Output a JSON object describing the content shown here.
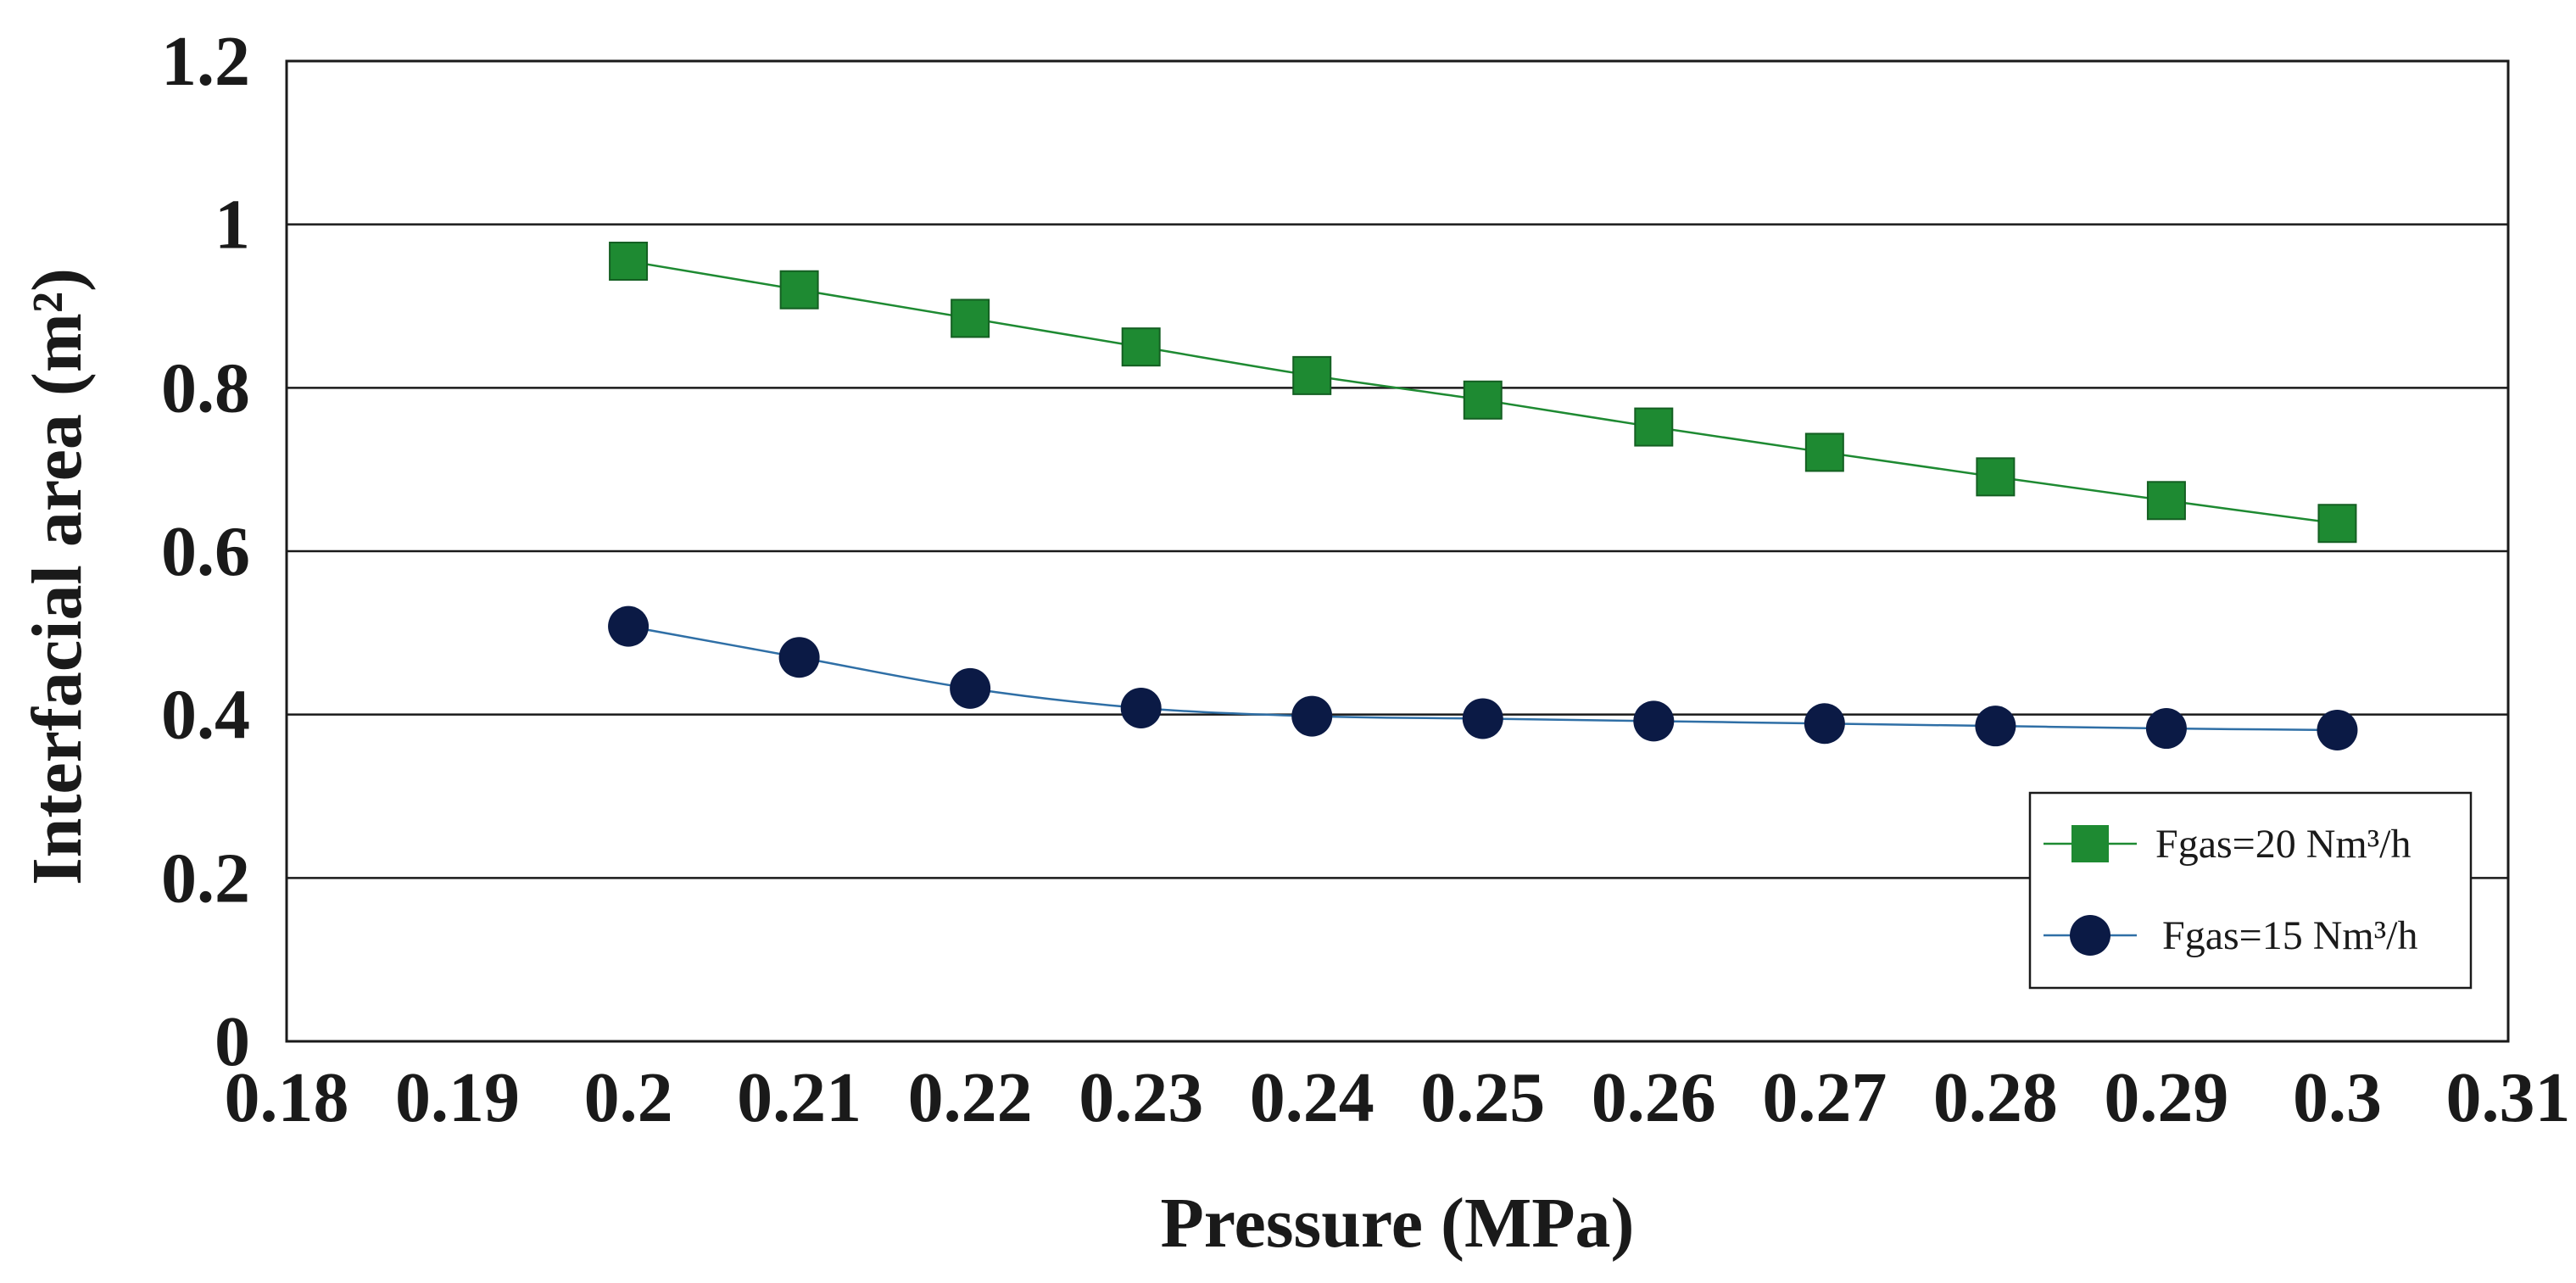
{
  "chart_data": {
    "type": "line",
    "title": "",
    "xlabel": "Pressure (MPa)",
    "ylabel": "Interfacial area (m²)",
    "xlim": [
      0.18,
      0.31
    ],
    "ylim": [
      0,
      1.2
    ],
    "grid": "horizontal",
    "legend_position": "right",
    "x_ticks": [
      {
        "value": 0.18,
        "label": "0.18"
      },
      {
        "value": 0.19,
        "label": "0.19"
      },
      {
        "value": 0.2,
        "label": "0.2"
      },
      {
        "value": 0.21,
        "label": "0.21"
      },
      {
        "value": 0.22,
        "label": "0.22"
      },
      {
        "value": 0.23,
        "label": "0.23"
      },
      {
        "value": 0.24,
        "label": "0.24"
      },
      {
        "value": 0.25,
        "label": "0.25"
      },
      {
        "value": 0.26,
        "label": "0.26"
      },
      {
        "value": 0.27,
        "label": "0.27"
      },
      {
        "value": 0.28,
        "label": "0.28"
      },
      {
        "value": 0.29,
        "label": "0.29"
      },
      {
        "value": 0.3,
        "label": "0.3"
      },
      {
        "value": 0.31,
        "label": "0.31"
      }
    ],
    "y_ticks": [
      {
        "value": 0,
        "label": "0"
      },
      {
        "value": 0.2,
        "label": "0.2"
      },
      {
        "value": 0.4,
        "label": "0.4"
      },
      {
        "value": 0.6,
        "label": "0.6"
      },
      {
        "value": 0.8,
        "label": "0.8"
      },
      {
        "value": 1.0,
        "label": "1"
      },
      {
        "value": 1.2,
        "label": "1.2"
      }
    ],
    "x": [
      0.2,
      0.21,
      0.22,
      0.23,
      0.24,
      0.25,
      0.26,
      0.27,
      0.28,
      0.29,
      0.3
    ],
    "series": [
      {
        "name": "Fgas=20 Nm³/h",
        "marker": "square",
        "marker_color": "#1e8a32",
        "line_color": "#1e8a32",
        "values": [
          0.955,
          0.92,
          0.885,
          0.85,
          0.815,
          0.785,
          0.752,
          0.721,
          0.691,
          0.662,
          0.634
        ]
      },
      {
        "name": "Fgas=15 Nm³/h",
        "marker": "circle",
        "marker_color": "#0b1a45",
        "line_color": "#2f6fa6",
        "values": [
          0.508,
          0.47,
          0.432,
          0.408,
          0.398,
          0.395,
          0.392,
          0.389,
          0.386,
          0.383,
          0.381
        ]
      }
    ]
  }
}
